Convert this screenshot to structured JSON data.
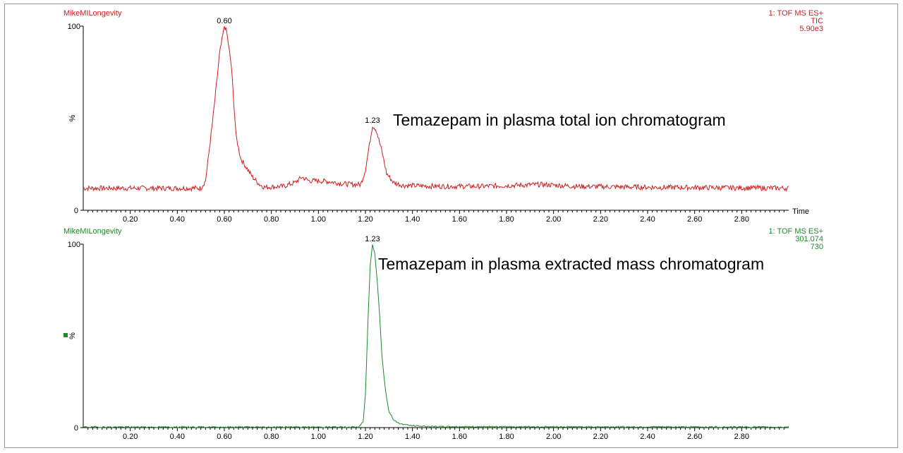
{
  "chart_data": [
    {
      "type": "line",
      "header_left": "MikeMILongevity",
      "header_right": [
        "1: TOF MS ES+",
        "TIC",
        "5.90e3"
      ],
      "ylabel": "%",
      "xlabel": "Time",
      "y_ticks": [
        "100",
        "0"
      ],
      "x_ticks": [
        "0.20",
        "0.40",
        "0.60",
        "0.80",
        "1.00",
        "1.20",
        "1.40",
        "1.60",
        "1.80",
        "2.00",
        "2.20",
        "2.40",
        "2.60",
        "2.80"
      ],
      "xlim": [
        0.0,
        3.0
      ],
      "ylim": [
        0,
        100
      ],
      "annotation": "Temazepam in plasma total ion chromatogram",
      "peaks": [
        {
          "label": "0.60",
          "x": 0.6,
          "y": 100
        },
        {
          "label": "1.23",
          "x": 1.23,
          "y": 46
        }
      ],
      "color": "#cc1f1f",
      "baseline": 12,
      "noise": 1.4,
      "series_points": [
        [
          0.0,
          12
        ],
        [
          0.5,
          12
        ],
        [
          0.52,
          16
        ],
        [
          0.55,
          48
        ],
        [
          0.58,
          85
        ],
        [
          0.6,
          100
        ],
        [
          0.61,
          97
        ],
        [
          0.63,
          78
        ],
        [
          0.65,
          40
        ],
        [
          0.67,
          28
        ],
        [
          0.7,
          22
        ],
        [
          0.72,
          18
        ],
        [
          0.75,
          14
        ],
        [
          0.77,
          12.5
        ],
        [
          0.85,
          13
        ],
        [
          0.9,
          15
        ],
        [
          0.93,
          18
        ],
        [
          0.96,
          16
        ],
        [
          1.0,
          16
        ],
        [
          1.05,
          15.5
        ],
        [
          1.1,
          14.5
        ],
        [
          1.15,
          14
        ],
        [
          1.18,
          14
        ],
        [
          1.2,
          22
        ],
        [
          1.22,
          38
        ],
        [
          1.23,
          46
        ],
        [
          1.245,
          44
        ],
        [
          1.27,
          32
        ],
        [
          1.29,
          20
        ],
        [
          1.32,
          15
        ],
        [
          1.36,
          13.5
        ],
        [
          1.5,
          13
        ],
        [
          1.7,
          13
        ],
        [
          1.95,
          14
        ],
        [
          2.1,
          13
        ],
        [
          2.4,
          12.5
        ],
        [
          3.0,
          12
        ]
      ]
    },
    {
      "type": "line",
      "header_left": "MikeMILongevity",
      "header_right": [
        "1: TOF MS ES+",
        "301.074",
        "730"
      ],
      "ylabel": "%",
      "y_ticks": [
        "100",
        "0"
      ],
      "x_ticks": [
        "0.20",
        "0.40",
        "0.60",
        "0.80",
        "1.00",
        "1.20",
        "1.40",
        "1.60",
        "1.80",
        "2.00",
        "2.20",
        "2.40",
        "2.60",
        "2.80"
      ],
      "xlim": [
        0.0,
        3.0
      ],
      "ylim": [
        0,
        100
      ],
      "annotation": "Temazepam in plasma extracted mass chromatogram",
      "peaks": [
        {
          "label": "1.23",
          "x": 1.23,
          "y": 100
        }
      ],
      "color": "#1e8a2a",
      "baseline": 0.4,
      "noise": 0.35,
      "series_points": [
        [
          0.0,
          0.3
        ],
        [
          1.17,
          0.3
        ],
        [
          1.19,
          3
        ],
        [
          1.2,
          18
        ],
        [
          1.21,
          55
        ],
        [
          1.22,
          88
        ],
        [
          1.23,
          100
        ],
        [
          1.24,
          95
        ],
        [
          1.25,
          80
        ],
        [
          1.26,
          62
        ],
        [
          1.27,
          40
        ],
        [
          1.28,
          26
        ],
        [
          1.29,
          16
        ],
        [
          1.3,
          9
        ],
        [
          1.32,
          4
        ],
        [
          1.35,
          2
        ],
        [
          1.4,
          1
        ],
        [
          1.5,
          0.5
        ],
        [
          3.0,
          0.3
        ]
      ]
    }
  ]
}
